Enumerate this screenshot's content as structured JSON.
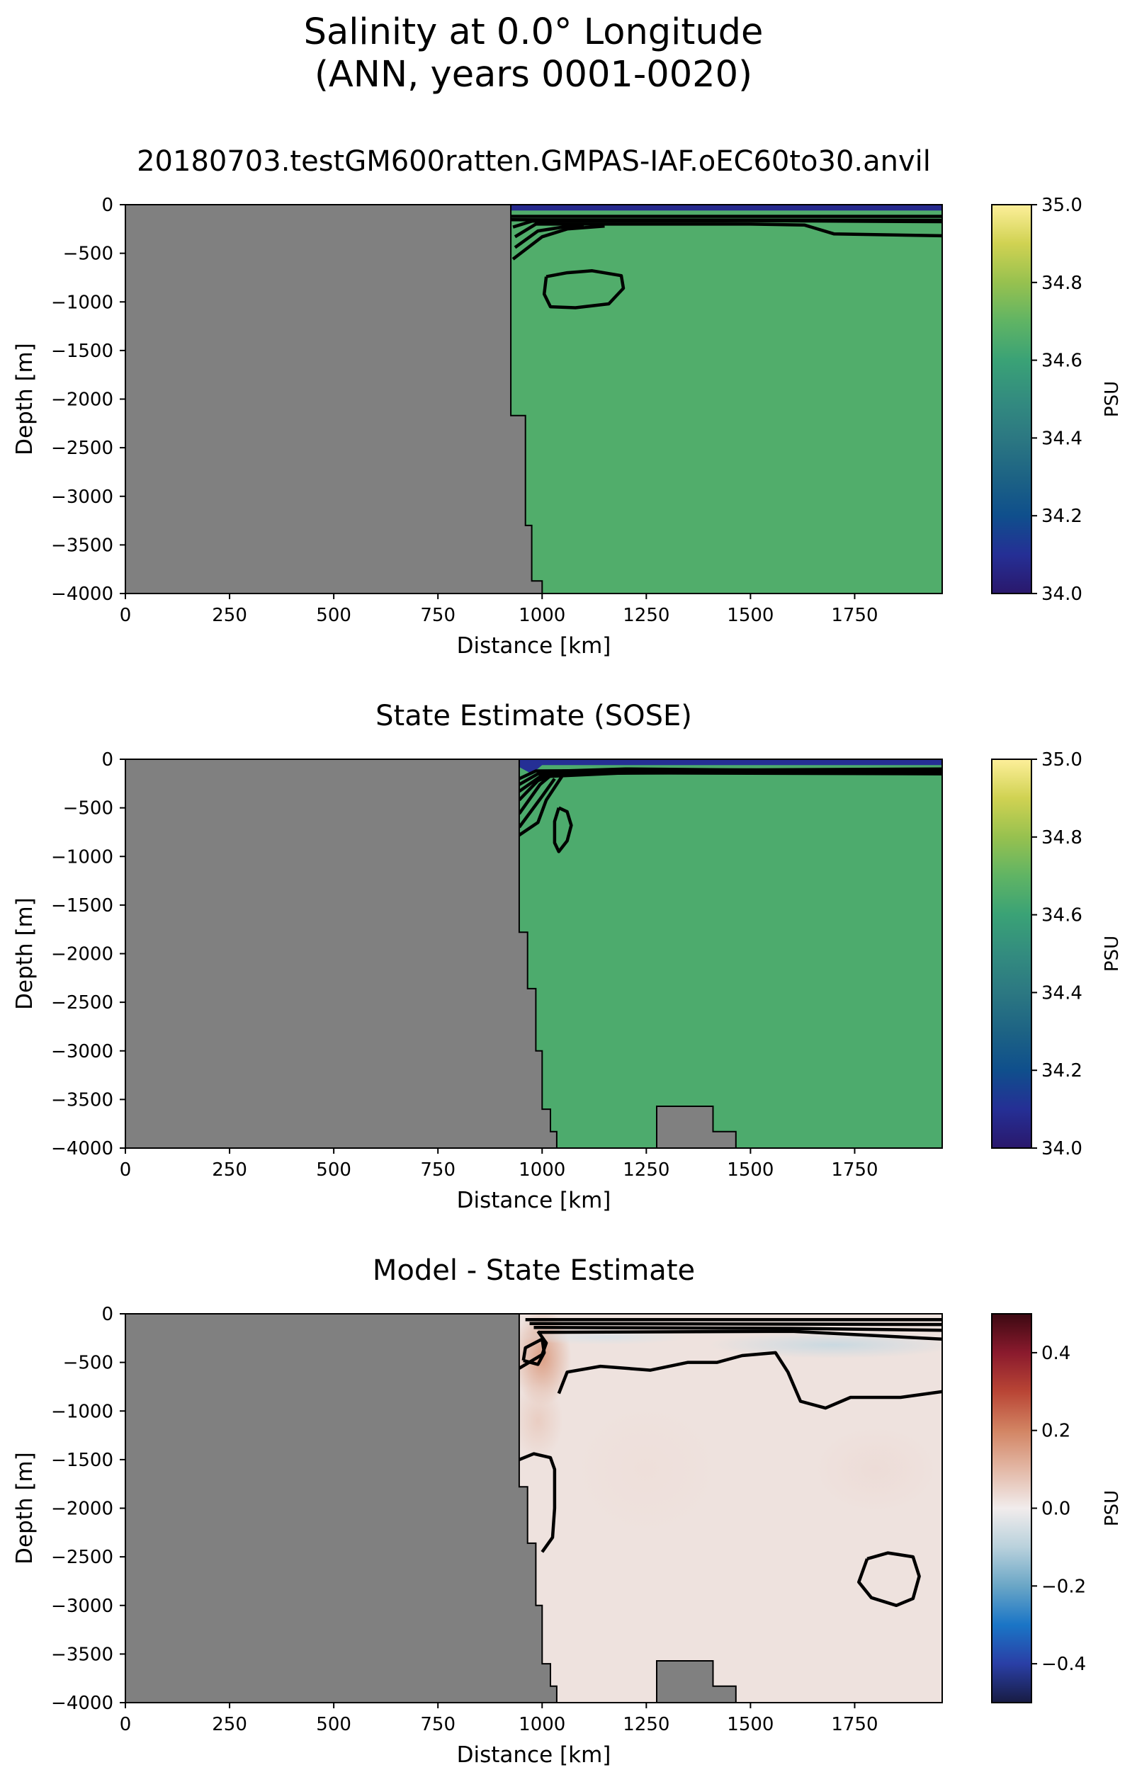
{
  "figure": {
    "title_line1": "Salinity at 0.0° Longitude",
    "title_line2": "(ANN, years 0001-0020)"
  },
  "colors": {
    "land": "#808080",
    "contour": "#000000"
  },
  "chart_data": [
    {
      "type": "heatmap",
      "title": "20180703.testGM600ratten.GMPAS-IAF.oEC60to30.anvil",
      "xlabel": "Distance [km]",
      "ylabel": "Depth [m]",
      "colorbar_label": "PSU",
      "colormap": "haline",
      "xlim": [
        0,
        1960
      ],
      "ylim": [
        -4000,
        0
      ],
      "xticks": [
        0,
        250,
        500,
        750,
        1000,
        1250,
        1500,
        1750
      ],
      "yticks": [
        0,
        -500,
        -1000,
        -1500,
        -2000,
        -2500,
        -3000,
        -3500,
        -4000
      ],
      "clim": [
        34.0,
        35.0
      ],
      "colorbar_ticks": [
        "35.0",
        "34.8",
        "34.6",
        "34.4",
        "34.2",
        "34.0"
      ],
      "interior_value": 34.66,
      "land_boundary": [
        [
          0,
          0
        ],
        [
          925,
          0
        ],
        [
          925,
          -2170
        ],
        [
          960,
          -2170
        ],
        [
          960,
          -3300
        ],
        [
          975,
          -3300
        ],
        [
          975,
          -3870
        ],
        [
          1000,
          -3870
        ],
        [
          1000,
          -4000
        ],
        [
          0,
          -4000
        ]
      ],
      "surface_layer": {
        "value": 34.08,
        "x_start": 925,
        "depth_curve": [
          [
            925,
            -60
          ],
          [
            1960,
            -60
          ]
        ]
      },
      "contours": [
        [
          [
            925,
            -120
          ],
          [
            1960,
            -120
          ]
        ],
        [
          [
            925,
            -155
          ],
          [
            1960,
            -160
          ]
        ],
        [
          [
            930,
            -230
          ],
          [
            975,
            -170
          ],
          [
            1500,
            -165
          ],
          [
            1960,
            -175
          ]
        ],
        [
          [
            935,
            -330
          ],
          [
            985,
            -200
          ],
          [
            1500,
            -200
          ],
          [
            1630,
            -210
          ],
          [
            1700,
            -300
          ],
          [
            1960,
            -320
          ]
        ],
        [
          [
            935,
            -440
          ],
          [
            990,
            -270
          ],
          [
            1050,
            -230
          ],
          [
            1100,
            -220
          ]
        ],
        [
          [
            930,
            -560
          ],
          [
            1000,
            -330
          ],
          [
            1060,
            -250
          ],
          [
            1150,
            -220
          ]
        ],
        [
          [
            1010,
            -740
          ],
          [
            1060,
            -700
          ],
          [
            1120,
            -680
          ],
          [
            1190,
            -730
          ],
          [
            1195,
            -860
          ],
          [
            1160,
            -1020
          ],
          [
            1080,
            -1060
          ],
          [
            1020,
            -1050
          ],
          [
            1005,
            -920
          ],
          [
            1010,
            -740
          ]
        ]
      ]
    },
    {
      "type": "heatmap",
      "title": "State Estimate (SOSE)",
      "xlabel": "Distance [km]",
      "ylabel": "Depth [m]",
      "colorbar_label": "PSU",
      "colormap": "haline",
      "xlim": [
        0,
        1960
      ],
      "ylim": [
        -4000,
        0
      ],
      "xticks": [
        0,
        250,
        500,
        750,
        1000,
        1250,
        1500,
        1750
      ],
      "yticks": [
        0,
        -500,
        -1000,
        -1500,
        -2000,
        -2500,
        -3000,
        -3500,
        -4000
      ],
      "clim": [
        34.0,
        35.0
      ],
      "colorbar_ticks": [
        "35.0",
        "34.8",
        "34.6",
        "34.4",
        "34.2",
        "34.0"
      ],
      "interior_value": 34.65,
      "land_boundary": [
        [
          0,
          0
        ],
        [
          945,
          0
        ],
        [
          945,
          -1780
        ],
        [
          965,
          -1780
        ],
        [
          965,
          -2360
        ],
        [
          985,
          -2360
        ],
        [
          985,
          -3000
        ],
        [
          1000,
          -3000
        ],
        [
          1000,
          -3600
        ],
        [
          1020,
          -3600
        ],
        [
          1020,
          -3830
        ],
        [
          1035,
          -3830
        ],
        [
          1035,
          -4000
        ],
        [
          1275,
          -4000
        ],
        [
          1275,
          -3570
        ],
        [
          1410,
          -3570
        ],
        [
          1410,
          -3830
        ],
        [
          1465,
          -3830
        ],
        [
          1465,
          -4000
        ],
        [
          0,
          -4000
        ]
      ],
      "surface_layer": {
        "value": 34.1,
        "x_start": 945,
        "depth_curve": [
          [
            945,
            -80
          ],
          [
            975,
            -150
          ],
          [
            1000,
            -60
          ],
          [
            1960,
            -60
          ]
        ]
      },
      "contours": [
        [
          [
            945,
            -200
          ],
          [
            985,
            -120
          ],
          [
            1960,
            -100
          ]
        ],
        [
          [
            945,
            -260
          ],
          [
            990,
            -150
          ],
          [
            1960,
            -120
          ]
        ],
        [
          [
            945,
            -330
          ],
          [
            995,
            -180
          ],
          [
            1200,
            -140
          ],
          [
            1960,
            -150
          ]
        ],
        [
          [
            945,
            -420
          ],
          [
            990,
            -220
          ],
          [
            1050,
            -120
          ],
          [
            1200,
            -100
          ],
          [
            1960,
            -130
          ]
        ],
        [
          [
            945,
            -560
          ],
          [
            995,
            -260
          ],
          [
            1020,
            -170
          ]
        ],
        [
          [
            945,
            -700
          ],
          [
            1000,
            -380
          ],
          [
            1030,
            -200
          ]
        ],
        [
          [
            945,
            -780
          ],
          [
            990,
            -650
          ],
          [
            1010,
            -420
          ],
          [
            1050,
            -160
          ],
          [
            1200,
            -110
          ],
          [
            1500,
            -110
          ],
          [
            1960,
            -140
          ]
        ],
        [
          [
            1040,
            -500
          ],
          [
            1060,
            -540
          ],
          [
            1070,
            -680
          ],
          [
            1060,
            -840
          ],
          [
            1040,
            -950
          ],
          [
            1030,
            -860
          ],
          [
            1030,
            -640
          ],
          [
            1040,
            -500
          ]
        ]
      ]
    },
    {
      "type": "heatmap",
      "title": "Model - State Estimate",
      "xlabel": "Distance [km]",
      "ylabel": "Depth [m]",
      "colorbar_label": "PSU",
      "colormap": "balance",
      "xlim": [
        0,
        1960
      ],
      "ylim": [
        -4000,
        0
      ],
      "xticks": [
        0,
        250,
        500,
        750,
        1000,
        1250,
        1500,
        1750
      ],
      "yticks": [
        0,
        -500,
        -1000,
        -1500,
        -2000,
        -2500,
        -3000,
        -3500,
        -4000
      ],
      "clim": [
        -0.5,
        0.5
      ],
      "colorbar_ticks": [
        "0.4",
        "0.2",
        "0.0",
        "−0.2",
        "−0.4"
      ],
      "interior_value": 0.02,
      "land_boundary": [
        [
          0,
          0
        ],
        [
          945,
          0
        ],
        [
          945,
          -1780
        ],
        [
          965,
          -1780
        ],
        [
          965,
          -2360
        ],
        [
          985,
          -2360
        ],
        [
          985,
          -3000
        ],
        [
          1000,
          -3000
        ],
        [
          1000,
          -3600
        ],
        [
          1020,
          -3600
        ],
        [
          1020,
          -3830
        ],
        [
          1035,
          -3830
        ],
        [
          1035,
          -4000
        ],
        [
          1275,
          -4000
        ],
        [
          1275,
          -3570
        ],
        [
          1410,
          -3570
        ],
        [
          1410,
          -3830
        ],
        [
          1465,
          -3830
        ],
        [
          1465,
          -4000
        ],
        [
          0,
          -4000
        ]
      ],
      "contours": [
        [
          [
            960,
            -60
          ],
          [
            1960,
            -60
          ]
        ],
        [
          [
            970,
            -100
          ],
          [
            1960,
            -110
          ]
        ],
        [
          [
            980,
            -140
          ],
          [
            1600,
            -150
          ],
          [
            1960,
            -170
          ]
        ],
        [
          [
            990,
            -190
          ],
          [
            1600,
            -180
          ],
          [
            1960,
            -260
          ]
        ],
        [
          [
            945,
            -560
          ],
          [
            1000,
            -420
          ],
          [
            1010,
            -300
          ],
          [
            990,
            -180
          ]
        ],
        [
          [
            955,
            -480
          ],
          [
            960,
            -350
          ],
          [
            1000,
            -260
          ],
          [
            1005,
            -400
          ],
          [
            990,
            -520
          ],
          [
            955,
            -480
          ]
        ],
        [
          [
            1040,
            -820
          ],
          [
            1060,
            -600
          ],
          [
            1140,
            -540
          ],
          [
            1260,
            -580
          ],
          [
            1350,
            -500
          ],
          [
            1420,
            -500
          ],
          [
            1480,
            -430
          ],
          [
            1560,
            -400
          ],
          [
            1590,
            -600
          ],
          [
            1620,
            -900
          ],
          [
            1680,
            -970
          ],
          [
            1740,
            -860
          ],
          [
            1860,
            -860
          ],
          [
            1960,
            -800
          ]
        ],
        [
          [
            945,
            -1500
          ],
          [
            980,
            -1440
          ],
          [
            1020,
            -1480
          ],
          [
            1030,
            -1600
          ],
          [
            1030,
            -2000
          ],
          [
            1025,
            -2300
          ],
          [
            1000,
            -2450
          ]
        ],
        [
          [
            1780,
            -2520
          ],
          [
            1830,
            -2460
          ],
          [
            1890,
            -2500
          ],
          [
            1905,
            -2700
          ],
          [
            1890,
            -2930
          ],
          [
            1850,
            -3000
          ],
          [
            1790,
            -2920
          ],
          [
            1760,
            -2760
          ],
          [
            1780,
            -2520
          ]
        ]
      ],
      "blobs": [
        {
          "cx": 1000,
          "cy": -450,
          "rx": 70,
          "ry": 500,
          "value": 0.15
        },
        {
          "cx": 990,
          "cy": -1100,
          "rx": 60,
          "ry": 400,
          "value": 0.06
        },
        {
          "cx": 1700,
          "cy": -320,
          "rx": 300,
          "ry": 140,
          "value": -0.07
        },
        {
          "cx": 1150,
          "cy": -240,
          "rx": 200,
          "ry": 80,
          "value": -0.04
        },
        {
          "cx": 1250,
          "cy": -1600,
          "rx": 180,
          "ry": 700,
          "value": 0.025
        },
        {
          "cx": 1800,
          "cy": -1600,
          "rx": 150,
          "ry": 450,
          "value": 0.03
        }
      ]
    }
  ]
}
